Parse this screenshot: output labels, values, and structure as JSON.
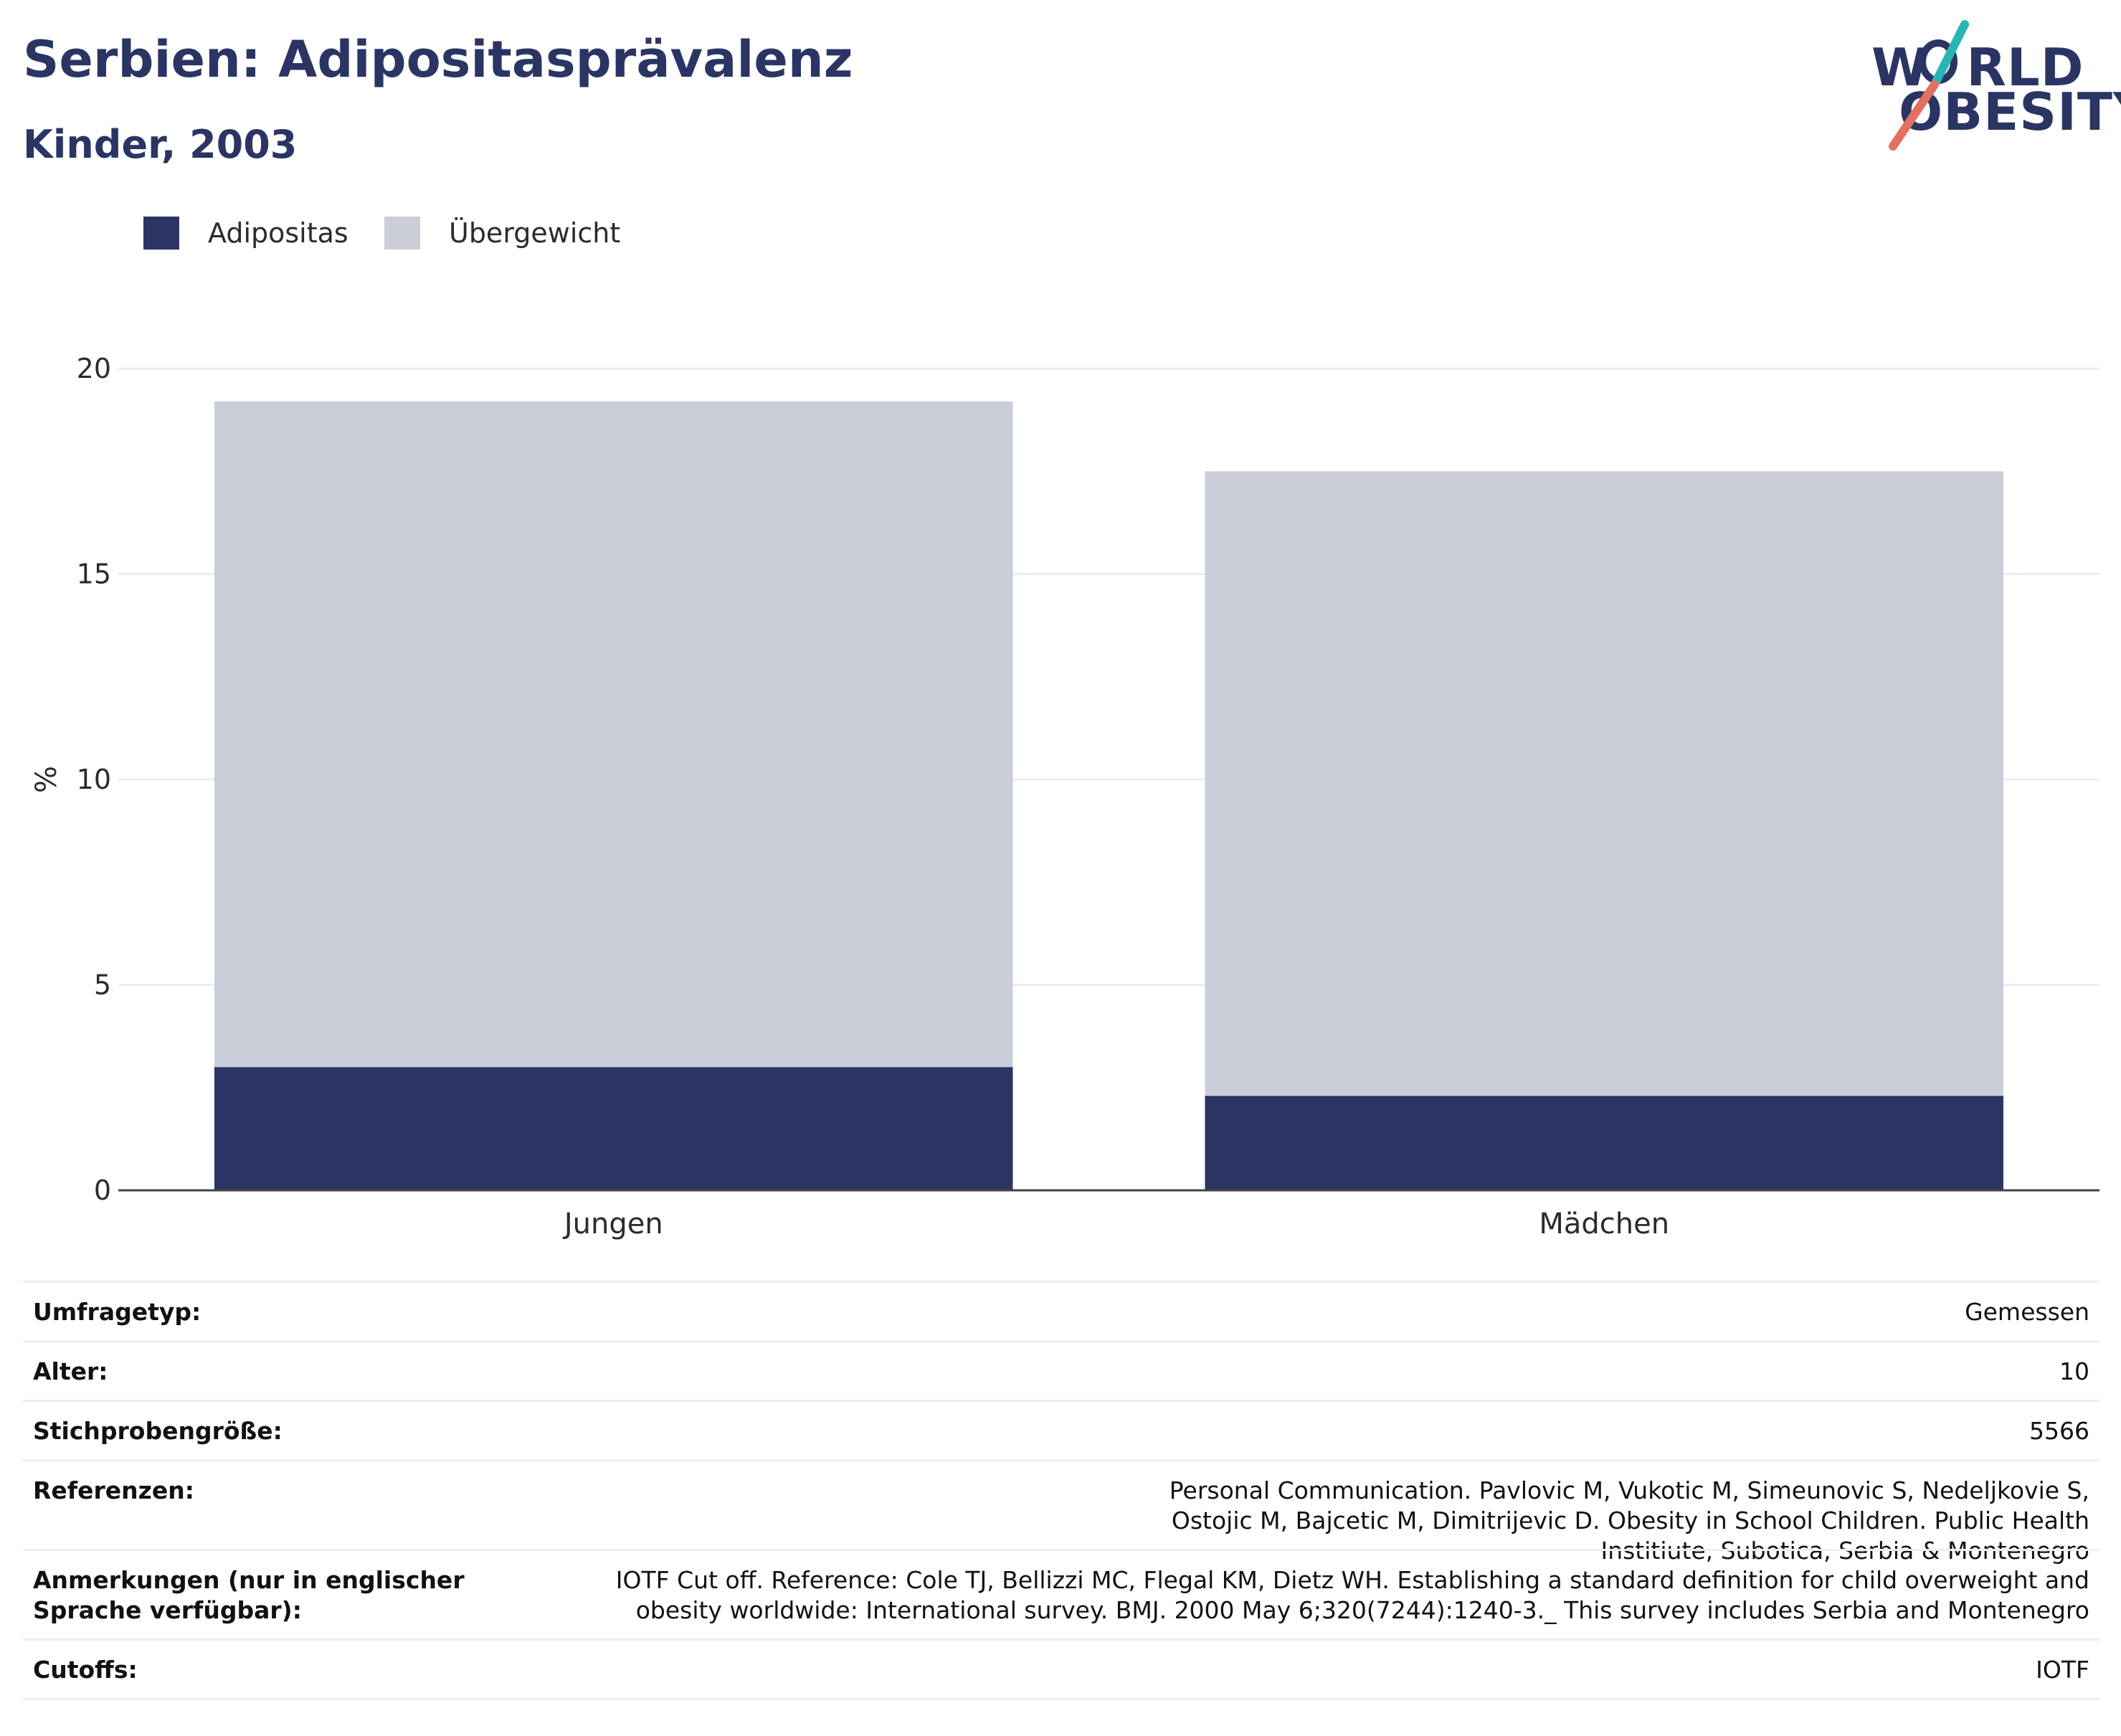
{
  "header": {
    "title": "Serbien: Adipositasprävalenz",
    "subtitle": "Kinder, 2003"
  },
  "logo": {
    "line1": "W RLD",
    "line2": "OBESITY",
    "colors": {
      "navy": "#2a3564",
      "teal": "#2ab5b5",
      "coral": "#e4705f"
    }
  },
  "legend": {
    "items": [
      {
        "label": "Adipositas",
        "color": "#2a3564"
      },
      {
        "label": "Übergewicht",
        "color": "#cbcdd8"
      }
    ]
  },
  "chart_data": {
    "type": "bar",
    "stacked": true,
    "categories": [
      "Jungen",
      "Mädchen"
    ],
    "series": [
      {
        "name": "Adipositas",
        "color": "#2a3564",
        "values": [
          3.0,
          2.3
        ]
      },
      {
        "name": "Übergewicht",
        "color": "#cbcdd8",
        "values": [
          16.2,
          15.2
        ]
      }
    ],
    "title": "Serbien: Adipositasprävalenz",
    "subtitle": "Kinder, 2003",
    "xlabel": "",
    "ylabel": "%",
    "ylim": [
      0,
      20
    ],
    "yticks": [
      0,
      5,
      10,
      15,
      20
    ],
    "grid": true,
    "legend_position": "top-left"
  },
  "info": {
    "rows": [
      {
        "label": "Umfragetyp:",
        "value": "Gemessen"
      },
      {
        "label": "Alter:",
        "value": "10"
      },
      {
        "label": "Stichprobengröße:",
        "value": "5566"
      },
      {
        "label": "Referenzen:",
        "value": "Personal Communication. Pavlovic M, Vukotic M, Simeunovic S, Nedeljkovie S, Ostojic M, Bajcetic M, Dimitrijevic D. Obesity in School Children. Public Health Institiute, Subotica, Serbia & Montenegro"
      },
      {
        "label": "Anmerkungen (nur in englischer Sprache verfügbar):",
        "value": "IOTF Cut off. Reference: Cole TJ, Bellizzi MC, Flegal KM, Dietz WH. Establishing a standard definition for child overweight and obesity worldwide: International survey. BMJ. 2000 May 6;320(7244):1240-3._ This survey includes Serbia and Montenegro"
      },
      {
        "label": "Cutoffs:",
        "value": "IOTF"
      }
    ]
  }
}
